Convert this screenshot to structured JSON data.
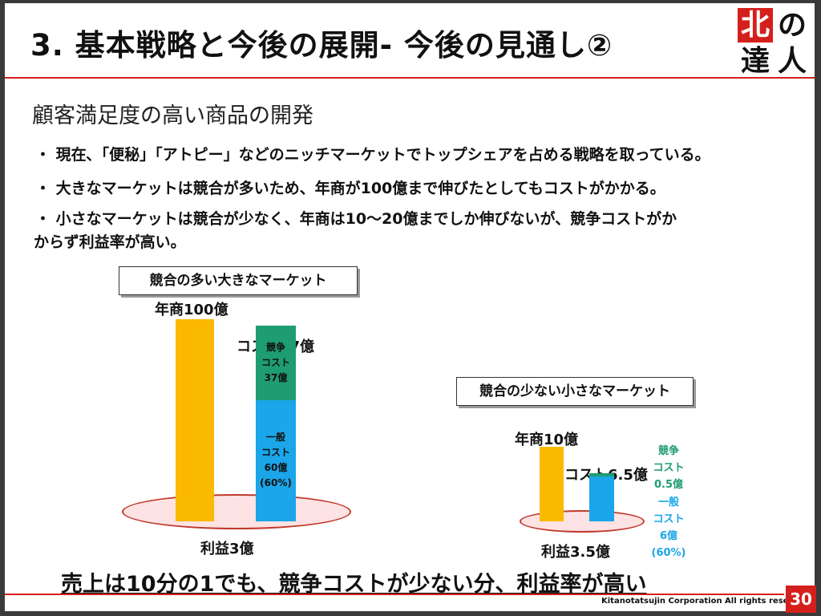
{
  "slide": {
    "title": "3. 基本戦略と今後の展開- 今後の見通し②",
    "logo_chars": [
      "北",
      "の",
      "達",
      "人"
    ],
    "subtitle": "顧客満足度の高い商品の開発",
    "bullets": [
      "・ 現在､「便秘」「アトピー」などのニッチマーケットでトップシェアを占める戦略を取っている。",
      "・ 大きなマーケットは競合が多いため、年商が100億まで伸びたとしてもコストがかかる。",
      "・ 小さなマーケットは競合が少なく、年商は10～20億までしか伸びないが、競争コストがか",
      "からず利益率が高い。"
    ],
    "conclusion": "売上は10分の1でも、競争コストが少ない分、利益率が高い",
    "copyright": "Kitanotatsujin Corporation All rights reserved",
    "page_number": "30"
  },
  "colors": {
    "accent_red": "#d4201c",
    "revenue_orange": "#fbb900",
    "competition_green": "#1e9c72",
    "general_blue": "#1aa6e8",
    "profit_ellipse_fill": "#fde3e3"
  },
  "chart_data": [
    {
      "type": "bar",
      "title": "競合の多い大きなマーケット",
      "revenue_label": "年商100億",
      "cost_label": "コスト97億",
      "profit_label": "利益3億",
      "series": [
        {
          "name": "年商",
          "values": [
            100
          ]
        },
        {
          "name": "競争コスト",
          "values": [
            37
          ]
        },
        {
          "name": "一般コスト",
          "values": [
            60
          ]
        }
      ],
      "segment_labels": {
        "competition": [
          "競争",
          "コスト",
          "37億"
        ],
        "general": [
          "一般",
          "コスト",
          "60億",
          "(60%)"
        ]
      }
    },
    {
      "type": "bar",
      "title": "競合の少ない小さなマーケット",
      "revenue_label": "年商10億",
      "cost_label": "コスト6.5億",
      "profit_label": "利益3.5億",
      "series": [
        {
          "name": "年商",
          "values": [
            10
          ]
        },
        {
          "name": "競争コスト",
          "values": [
            0.5
          ]
        },
        {
          "name": "一般コスト",
          "values": [
            6
          ]
        }
      ],
      "segment_labels": {
        "competition": [
          "競争",
          "コスト",
          "0.5億"
        ],
        "general": [
          "一般",
          "コスト",
          "6億",
          "(60%)"
        ]
      }
    }
  ]
}
